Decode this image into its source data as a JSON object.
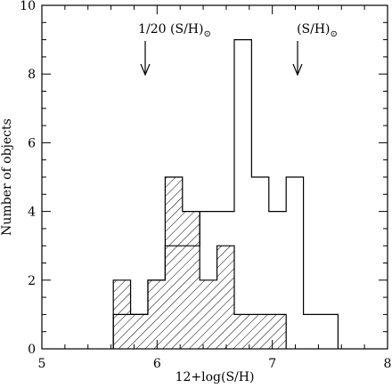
{
  "chart_data": {
    "type": "histogram",
    "xlabel": "12+log(S/H)",
    "ylabel": "Number of objects",
    "xlim": [
      5,
      8
    ],
    "ylim": [
      0,
      10
    ],
    "xticks": [
      "5",
      "6",
      "7",
      "8"
    ],
    "yticks": [
      "0",
      "2",
      "4",
      "6",
      "8",
      "10"
    ],
    "bin_width": 0.15,
    "bin_edges": [
      5.62,
      5.77,
      5.92,
      6.07,
      6.22,
      6.37,
      6.52,
      6.67,
      6.82,
      6.97,
      7.12,
      7.27,
      7.42,
      7.57
    ],
    "series": [
      {
        "style": "open",
        "edges": [
          5.62,
          5.77,
          5.92,
          6.07,
          6.22,
          6.37,
          6.52,
          6.67,
          6.82,
          6.97,
          7.12,
          7.27,
          7.42,
          7.57
        ],
        "values": [
          1,
          1,
          2,
          3,
          3,
          4,
          4,
          9,
          5,
          4,
          5,
          1,
          1
        ]
      },
      {
        "style": "hatched",
        "edges": [
          5.62,
          5.77,
          5.92,
          6.07,
          6.22,
          6.37,
          6.52,
          6.67,
          6.82,
          6.97,
          7.12
        ],
        "values": [
          2,
          1,
          2,
          5,
          4,
          2,
          3,
          1,
          1,
          1
        ]
      }
    ],
    "annotations": [
      {
        "label": "1/20 (S/H)",
        "subscript": "⊙",
        "x": 5.92
      },
      {
        "label": "(S/H)",
        "subscript": "⊙",
        "x": 7.2
      }
    ]
  },
  "colors": {
    "axis": "#000000",
    "line": "#000000",
    "hatch": "#000000",
    "background": "#ffffff"
  }
}
